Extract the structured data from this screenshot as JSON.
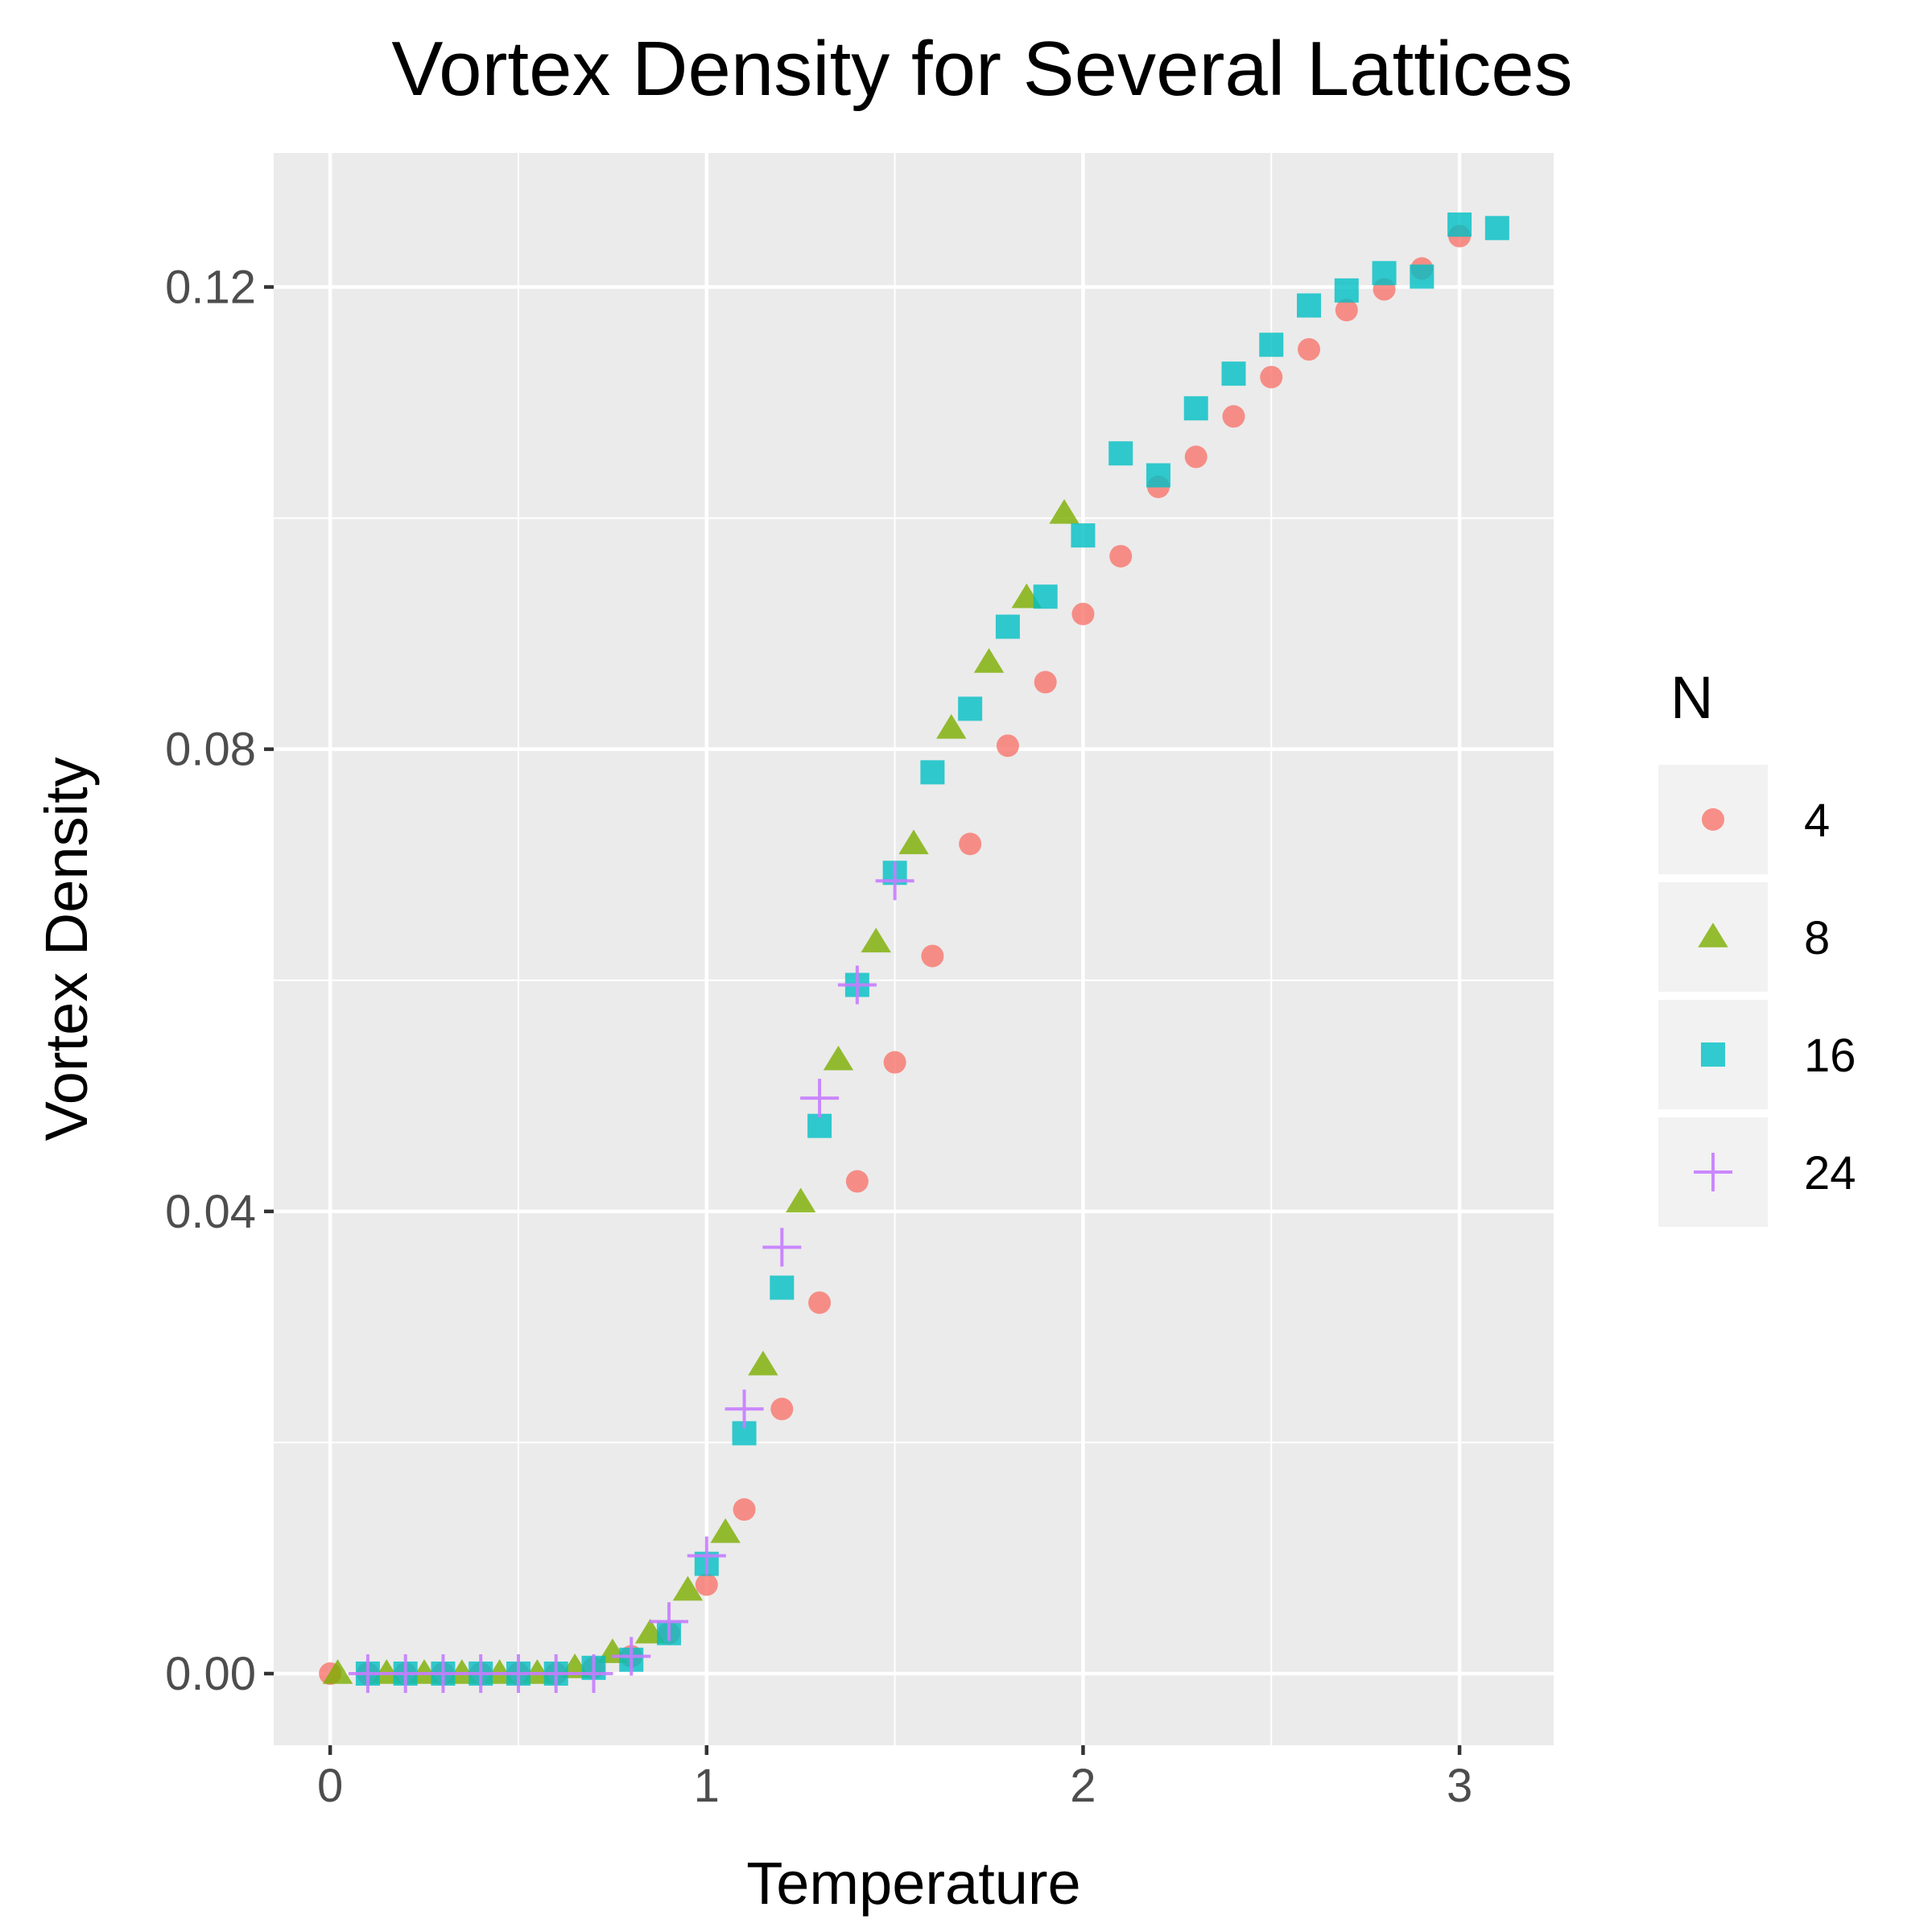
{
  "chart_data": {
    "type": "scatter",
    "title": "Vortex Density for Several Lattices",
    "xlabel": "Temperature",
    "ylabel": "Vortex Density",
    "xlim": [
      -0.15,
      3.25
    ],
    "ylim": [
      -0.0062,
      0.1316
    ],
    "x_ticks": [
      {
        "value": 0,
        "label": "0"
      },
      {
        "value": 1,
        "label": "1"
      },
      {
        "value": 2,
        "label": "2"
      },
      {
        "value": 3,
        "label": "3"
      }
    ],
    "y_ticks": [
      {
        "value": 0.0,
        "label": "0.00"
      },
      {
        "value": 0.04,
        "label": "0.04"
      },
      {
        "value": 0.08,
        "label": "0.08"
      },
      {
        "value": 0.12,
        "label": "0.12"
      }
    ],
    "grid": true,
    "legend": {
      "title": "N",
      "position": "right"
    },
    "series": [
      {
        "name": "4",
        "shape": "circle",
        "color": "#F8766D",
        "points": [
          [
            0.0,
            0.0
          ],
          [
            0.1,
            0.0
          ],
          [
            0.2,
            0.0
          ],
          [
            0.3,
            0.0
          ],
          [
            0.4,
            0.0
          ],
          [
            0.5,
            0.0
          ],
          [
            0.6,
            0.0
          ],
          [
            0.7,
            0.0005
          ],
          [
            0.8,
            0.0015
          ],
          [
            0.9,
            0.0035
          ],
          [
            1.0,
            0.0077
          ],
          [
            1.1,
            0.0142
          ],
          [
            1.2,
            0.0229
          ],
          [
            1.3,
            0.0321
          ],
          [
            1.4,
            0.0426
          ],
          [
            1.5,
            0.0529
          ],
          [
            1.6,
            0.0621
          ],
          [
            1.7,
            0.0718
          ],
          [
            1.8,
            0.0803
          ],
          [
            1.9,
            0.0858
          ],
          [
            2.0,
            0.0917
          ],
          [
            2.1,
            0.0967
          ],
          [
            2.2,
            0.1027
          ],
          [
            2.3,
            0.1053
          ],
          [
            2.4,
            0.1088
          ],
          [
            2.5,
            0.1122
          ],
          [
            2.6,
            0.1146
          ],
          [
            2.7,
            0.118
          ],
          [
            2.8,
            0.1198
          ],
          [
            2.9,
            0.1216
          ],
          [
            3.0,
            0.1244
          ]
        ]
      },
      {
        "name": "8",
        "shape": "triangle",
        "color": "#7CAE00",
        "points": [
          [
            0.02,
            0.0
          ],
          [
            0.15,
            0.0
          ],
          [
            0.25,
            0.0
          ],
          [
            0.35,
            0.0
          ],
          [
            0.45,
            0.0
          ],
          [
            0.55,
            0.0
          ],
          [
            0.65,
            0.0005
          ],
          [
            0.75,
            0.0018
          ],
          [
            0.85,
            0.0035
          ],
          [
            0.95,
            0.0072
          ],
          [
            1.05,
            0.0122
          ],
          [
            1.15,
            0.0267
          ],
          [
            1.25,
            0.0408
          ],
          [
            1.35,
            0.0531
          ],
          [
            1.45,
            0.0633
          ],
          [
            1.55,
            0.0718
          ],
          [
            1.65,
            0.0818
          ],
          [
            1.75,
            0.0875
          ],
          [
            1.85,
            0.0931
          ],
          [
            1.95,
            0.1004
          ]
        ]
      },
      {
        "name": "16",
        "shape": "square",
        "color": "#00BFC4",
        "points": [
          [
            0.1,
            0.0
          ],
          [
            0.2,
            0.0
          ],
          [
            0.3,
            0.0
          ],
          [
            0.4,
            0.0
          ],
          [
            0.5,
            0.0
          ],
          [
            0.6,
            0.0
          ],
          [
            0.7,
            0.0005
          ],
          [
            0.8,
            0.0012
          ],
          [
            0.9,
            0.0035
          ],
          [
            1.0,
            0.0095
          ],
          [
            1.1,
            0.0208
          ],
          [
            1.2,
            0.0334
          ],
          [
            1.3,
            0.0474
          ],
          [
            1.4,
            0.0596
          ],
          [
            1.5,
            0.0693
          ],
          [
            1.6,
            0.078
          ],
          [
            1.7,
            0.0835
          ],
          [
            1.8,
            0.0906
          ],
          [
            1.9,
            0.0932
          ],
          [
            2.0,
            0.0985
          ],
          [
            2.1,
            0.1056
          ],
          [
            2.2,
            0.1037
          ],
          [
            2.3,
            0.1095
          ],
          [
            2.4,
            0.1125
          ],
          [
            2.5,
            0.115
          ],
          [
            2.6,
            0.1184
          ],
          [
            2.7,
            0.1197
          ],
          [
            2.8,
            0.1212
          ],
          [
            2.9,
            0.1209
          ],
          [
            3.0,
            0.1254
          ],
          [
            3.1,
            0.1251
          ]
        ]
      },
      {
        "name": "24",
        "shape": "plus",
        "color": "#C77CFF",
        "points": [
          [
            0.1,
            0.0
          ],
          [
            0.2,
            0.0
          ],
          [
            0.3,
            0.0
          ],
          [
            0.4,
            0.0
          ],
          [
            0.5,
            0.0
          ],
          [
            0.6,
            0.0
          ],
          [
            0.7,
            0.0
          ],
          [
            0.8,
            0.0015
          ],
          [
            0.9,
            0.0045
          ],
          [
            1.0,
            0.0102
          ],
          [
            1.1,
            0.0229
          ],
          [
            1.2,
            0.0369
          ],
          [
            1.3,
            0.0498
          ],
          [
            1.4,
            0.0596
          ],
          [
            1.5,
            0.0686
          ]
        ]
      }
    ]
  }
}
